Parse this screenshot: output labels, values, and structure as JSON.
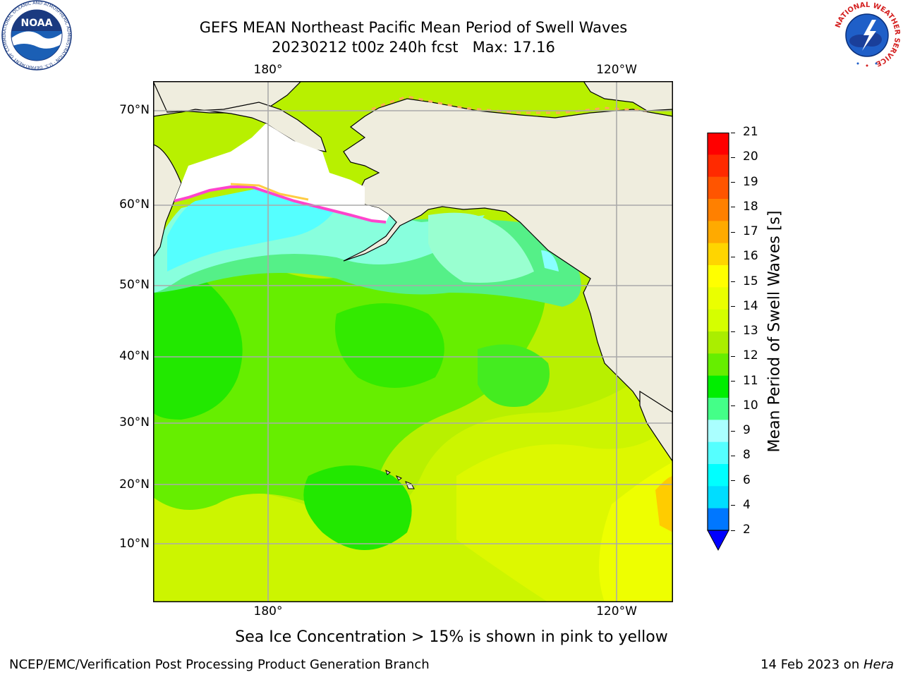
{
  "title_line1": "GEFS MEAN Northeast Pacific Mean Period of Swell Waves",
  "title_line2": "20230212 t00z 240h fcst   Max: 17.16",
  "map": {
    "lon_labels": [
      "180°",
      "120°W"
    ],
    "lat_labels": [
      "70°N",
      "60°N",
      "50°N",
      "40°N",
      "30°N",
      "20°N",
      "10°N"
    ],
    "ocean_color": "#aaee22",
    "land_color": "#efedde"
  },
  "colorbar": {
    "label": "Mean Period of Swell Waves [s]",
    "ticks": [
      "21",
      "20",
      "19",
      "18",
      "17",
      "16",
      "15",
      "14",
      "13",
      "12",
      "11",
      "10",
      "9",
      "8",
      "6",
      "4",
      "2"
    ],
    "colors": [
      "#ff0000",
      "#ff2a00",
      "#ff5500",
      "#ff8000",
      "#ffaa00",
      "#ffd500",
      "#ffff00",
      "#eaff00",
      "#d5ff00",
      "#aaee00",
      "#66ee00",
      "#00ee00",
      "#44ff88",
      "#aaffff",
      "#55ffff",
      "#00ffff",
      "#00ddff",
      "#0077ff"
    ],
    "under_color": "#0000ff"
  },
  "note": "Sea Ice Concentration > 15% is shown in pink to yellow",
  "footer_left": "NCEP/EMC/Verification Post Processing Product Generation Branch",
  "footer_right_text": "14 Feb 2023 on ",
  "footer_right_italic": "Hera",
  "logos": {
    "noaa_text": "NOAA",
    "noaa_ring": "NATIONAL OCEANIC AND ATMOSPHERIC ADMINISTRATION · U.S. DEPARTMENT OF COMMERCE",
    "nws_ring": "NATIONAL WEATHER SERVICE"
  }
}
